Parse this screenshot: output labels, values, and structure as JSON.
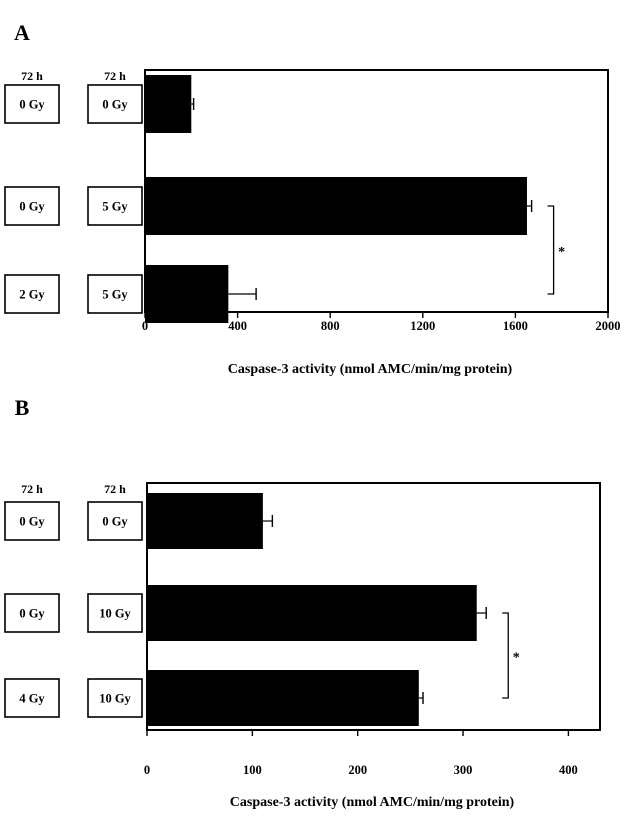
{
  "chart_data": [
    {
      "type": "bar",
      "orientation": "horizontal",
      "panel_label": "A",
      "header_labels": [
        "72 h",
        "72 h"
      ],
      "categories": [
        [
          "0 Gy",
          "0 Gy"
        ],
        [
          "0 Gy",
          "5 Gy"
        ],
        [
          "2 Gy",
          "5 Gy"
        ]
      ],
      "values": [
        200,
        1650,
        360
      ],
      "errors": [
        10,
        20,
        120
      ],
      "xlabel": "Caspase-3 activity (nmol AMC/min/mg protein)",
      "xlim": [
        0,
        2000
      ],
      "xticks": [
        0,
        400,
        800,
        1200,
        1600,
        2000
      ],
      "significance": {
        "between": [
          1,
          2
        ],
        "label": "*"
      },
      "grid": false,
      "bar_color": "#000000"
    },
    {
      "type": "bar",
      "orientation": "horizontal",
      "panel_label": "B",
      "header_labels": [
        "72 h",
        "72 h"
      ],
      "categories": [
        [
          "0 Gy",
          "0 Gy"
        ],
        [
          "0 Gy",
          "10 Gy"
        ],
        [
          "4 Gy",
          "10 Gy"
        ]
      ],
      "values": [
        110,
        313,
        258
      ],
      "errors": [
        9,
        9,
        4
      ],
      "xlabel": "Caspase-3 activity (nmol AMC/min/mg protein)",
      "xlim": [
        0,
        430
      ],
      "xticks": [
        0,
        100,
        200,
        300,
        400
      ],
      "significance": {
        "between": [
          1,
          2
        ],
        "label": "*"
      },
      "grid": false,
      "bar_color": "#000000"
    }
  ]
}
